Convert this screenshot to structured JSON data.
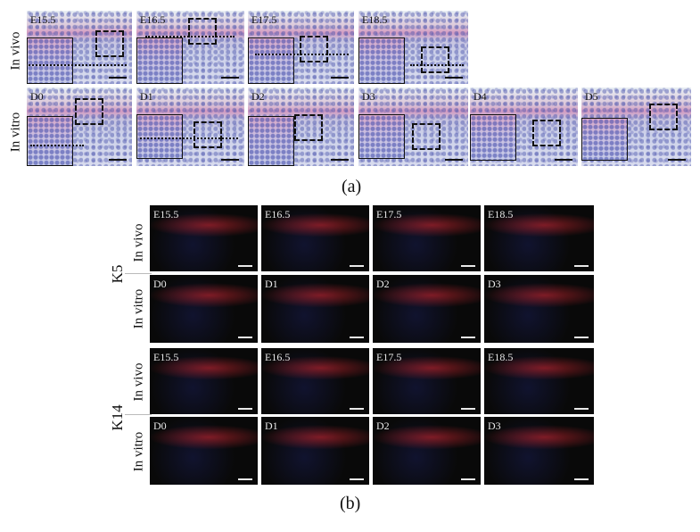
{
  "panel_a": {
    "marker": "(a)",
    "rows": [
      {
        "label": "In vivo",
        "tiles": [
          "E15.5",
          "E16.5",
          "E17.5",
          "E18.5"
        ]
      },
      {
        "label": "In vitro",
        "tiles": [
          "D0",
          "D1",
          "D2",
          "D3",
          "D4",
          "D5"
        ]
      }
    ]
  },
  "panel_b": {
    "marker": "(b)",
    "groups": [
      {
        "label": "K5",
        "rows": [
          {
            "label": "In vivo",
            "tiles": [
              "E15.5",
              "E16.5",
              "E17.5",
              "E18.5"
            ]
          },
          {
            "label": "In vitro",
            "tiles": [
              "D0",
              "D1",
              "D2",
              "D3"
            ]
          }
        ]
      },
      {
        "label": "K14",
        "rows": [
          {
            "label": "In vivo",
            "tiles": [
              "E15.5",
              "E16.5",
              "E17.5",
              "E18.5"
            ]
          },
          {
            "label": "In vitro",
            "tiles": [
              "D0",
              "D1",
              "D2",
              "D3"
            ]
          }
        ]
      }
    ]
  },
  "colors": {
    "he_stain": "#d49ac0",
    "nuclei": "#4650aa",
    "fluor_red": "#dc2832",
    "fluor_blue": "#2832a0",
    "fluor_bg": "#090909"
  }
}
